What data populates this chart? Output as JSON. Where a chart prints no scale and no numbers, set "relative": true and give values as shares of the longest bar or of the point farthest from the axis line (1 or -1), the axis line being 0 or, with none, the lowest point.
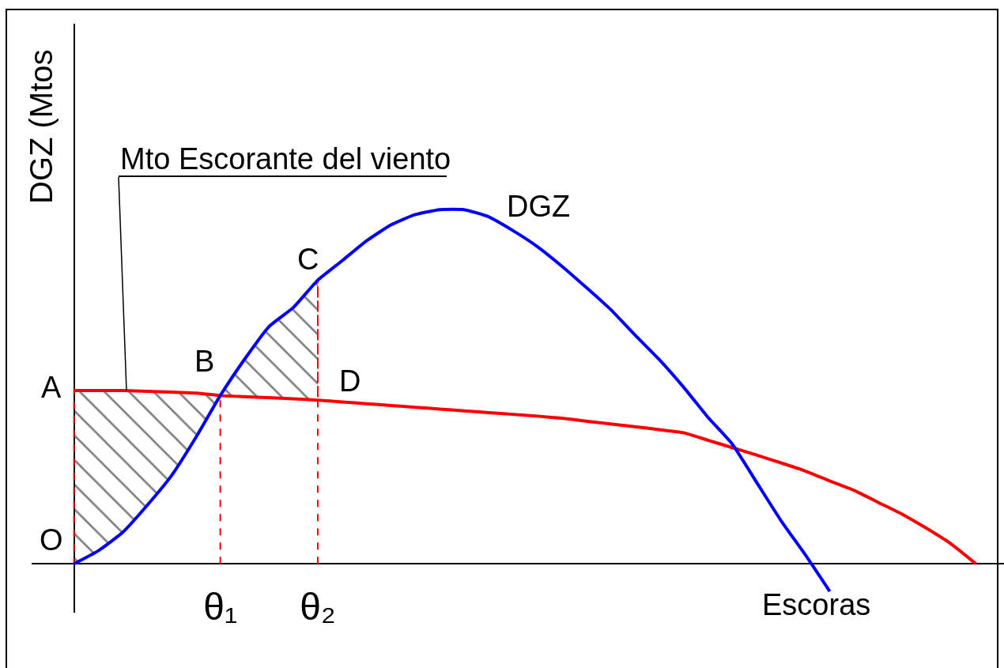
{
  "chart_data": {
    "type": "line",
    "relative": true,
    "ylabel": "DGZ (Mtos",
    "xlabel": "Escoras",
    "tick_labels": "x",
    "legend": false,
    "categories": [
      null,
      null,
      null,
      null,
      null,
      null,
      "θ₁",
      null,
      null,
      null,
      "θ₂",
      null,
      null,
      null,
      null,
      null,
      null,
      null,
      null,
      null,
      null,
      null,
      null,
      null,
      null,
      null,
      null,
      null,
      null,
      null,
      null,
      null,
      null,
      null,
      null,
      null,
      null,
      null
    ],
    "series": [
      {
        "color": "#ff0000",
        "values": [
          0.489,
          0.489,
          0.489,
          0.487,
          0.485,
          0.482,
          0.475,
          0.472,
          0.469,
          0.466,
          0.462,
          0.457,
          0.452,
          0.447,
          0.442,
          0.437,
          0.432,
          0.427,
          0.422,
          0.417,
          0.411,
          0.403,
          0.395,
          0.387,
          0.379,
          0.37,
          0.349,
          0.328,
          0.307,
          0.285,
          0.262,
          0.234,
          0.207,
          0.173,
          0.139,
          0.099,
          0.055,
          0
        ],
        "lower": [
          0,
          0.037,
          0.089,
          0.165,
          0.249,
          0.357,
          0.475,
          0.472,
          0.469,
          0.466,
          0.462,
          null,
          null,
          null,
          null,
          null,
          null,
          null,
          null,
          null,
          null,
          null,
          null,
          null,
          null,
          null,
          null,
          null,
          null,
          null,
          null,
          null,
          null,
          null,
          null,
          null,
          null,
          null
        ],
        "upper": [
          0.489,
          0.489,
          0.489,
          0.487,
          0.485,
          0.482,
          0.475,
          0.578,
          0.67,
          0.724,
          0.801,
          null,
          null,
          null,
          null,
          null,
          null,
          null,
          null,
          null,
          null,
          null,
          null,
          null,
          null,
          null,
          null,
          null,
          null,
          null,
          null,
          null,
          null,
          null,
          null,
          null,
          null,
          null
        ]
      },
      {
        "name": "DGZ",
        "color": "#0000ff",
        "values": [
          0,
          0.037,
          0.089,
          0.165,
          0.249,
          0.357,
          0.475,
          0.578,
          0.67,
          0.724,
          0.801,
          0.856,
          0.912,
          0.957,
          0.986,
          1,
          1,
          0.98,
          0.941,
          0.896,
          0.841,
          0.781,
          0.719,
          0.647,
          0.577,
          0.499,
          0.414,
          0.338,
          0.23,
          0.122,
          0.025,
          -0.078,
          null,
          null,
          null,
          null,
          null,
          null
        ]
      }
    ],
    "ref_lines": [
      {
        "axis": "x",
        "value": "θ₁",
        "color": "#ff0000",
        "line_style": "dashed"
      },
      {
        "axis": "x",
        "value": "θ₂",
        "color": "#ff0000",
        "line_style": "dashed"
      }
    ],
    "annotations": [
      "Mto Escorante del viento",
      "A",
      {
        "text": "B",
        "x": "θ₁",
        "y": 0.475
      },
      {
        "text": "C",
        "x": "θ₂",
        "y": 0.801
      },
      {
        "text": "D",
        "x": "θ₂",
        "y": 0.462
      },
      "O"
    ]
  }
}
